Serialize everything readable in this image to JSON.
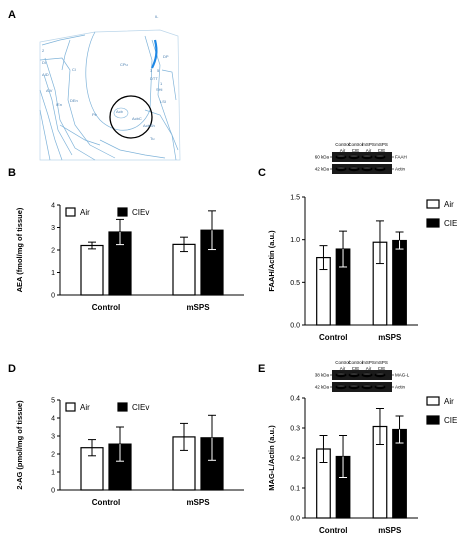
{
  "panels": {
    "A": "A",
    "B": "B",
    "C": "C",
    "D": "D",
    "E": "E"
  },
  "atlas": {
    "labels": [
      "IL",
      "CPu",
      "DP",
      "5",
      "3",
      "DTT",
      "SHi",
      "LSI",
      "Acb",
      "AcbC",
      "AcbSh",
      "Cl",
      "AID",
      "AIV",
      "DEn",
      "IEn",
      "Pir",
      "Tu",
      "DI",
      "2",
      "1"
    ],
    "line_color": "#7fb3d9",
    "accent_color": "#1e88e5"
  },
  "colors": {
    "air": "#ffffff",
    "treatment": "#000000",
    "stroke": "#000000"
  },
  "chart_data": [
    {
      "id": "B",
      "type": "bar",
      "ylabel": "AEA (fmol/mg of tissue)",
      "categories": [
        "Control",
        "mSPS"
      ],
      "ylim": [
        0,
        4
      ],
      "yticks": [
        0,
        1,
        2,
        3,
        4
      ],
      "series": [
        {
          "name": "Air",
          "values": [
            2.2,
            2.25
          ],
          "errors": [
            0.15,
            0.32
          ],
          "color": "#ffffff"
        },
        {
          "name": "CIEv",
          "values": [
            2.8,
            2.88
          ],
          "errors": [
            0.56,
            0.86
          ],
          "color": "#000000"
        }
      ],
      "legend": "top-left"
    },
    {
      "id": "C",
      "type": "bar",
      "ylabel": "FAAH/Actin (a.u.)",
      "categories": [
        "Control",
        "mSPS"
      ],
      "ylim": [
        0,
        1.5
      ],
      "yticks": [
        "0.0",
        "0.5",
        "1.0",
        "1.5"
      ],
      "series": [
        {
          "name": "Air",
          "values": [
            0.79,
            0.97
          ],
          "errors": [
            0.14,
            0.25
          ],
          "color": "#ffffff"
        },
        {
          "name": "CIE",
          "values": [
            0.89,
            0.99
          ],
          "errors": [
            0.21,
            0.1
          ],
          "color": "#000000"
        }
      ],
      "legend": "right",
      "blot": {
        "lanes": [
          "Control\nAir",
          "Control\nCIE",
          "mSPS\nAir",
          "mSPS\nCIE"
        ],
        "bands": [
          {
            "marker": "60 kDa",
            "protein": "FAAH"
          },
          {
            "marker": "42 kDa",
            "protein": "Actin"
          }
        ]
      }
    },
    {
      "id": "D",
      "type": "bar",
      "ylabel": "2-AG (pmol/mg of tissue)",
      "categories": [
        "Control",
        "mSPS"
      ],
      "ylim": [
        0,
        5
      ],
      "yticks": [
        0,
        1,
        2,
        3,
        4,
        5
      ],
      "series": [
        {
          "name": "Air",
          "values": [
            2.35,
            2.95
          ],
          "errors": [
            0.45,
            0.75
          ],
          "color": "#ffffff"
        },
        {
          "name": "CIEv",
          "values": [
            2.55,
            2.9
          ],
          "errors": [
            0.95,
            1.25
          ],
          "color": "#000000"
        }
      ],
      "legend": "top-left"
    },
    {
      "id": "E",
      "type": "bar",
      "ylabel": "MAG-L/Actin (a.u.)",
      "categories": [
        "Control",
        "mSPS"
      ],
      "ylim": [
        0,
        0.4
      ],
      "yticks": [
        "0.0",
        "0.1",
        "0.2",
        "0.3",
        "0.4"
      ],
      "series": [
        {
          "name": "Air",
          "values": [
            0.23,
            0.305
          ],
          "errors": [
            0.045,
            0.06
          ],
          "color": "#ffffff"
        },
        {
          "name": "CIE",
          "values": [
            0.205,
            0.295
          ],
          "errors": [
            0.07,
            0.045
          ],
          "color": "#000000"
        }
      ],
      "legend": "right",
      "blot": {
        "lanes": [
          "Control\nAir",
          "Control\nCIE",
          "mSPS\nAir",
          "mSPS\nCIE"
        ],
        "bands": [
          {
            "marker": "38 kDa",
            "protein": "MAG-L"
          },
          {
            "marker": "42 kDa",
            "protein": "Actin"
          }
        ]
      }
    }
  ]
}
